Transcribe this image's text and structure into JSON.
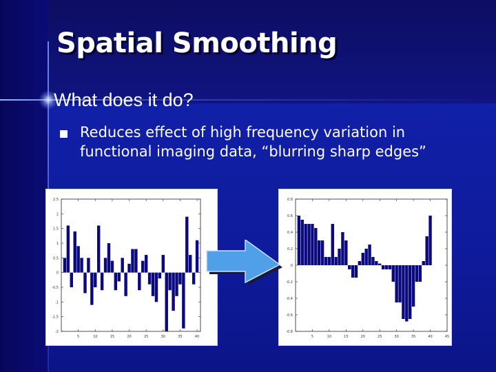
{
  "slide": {
    "title": "Spatial Smoothing",
    "subtitle": "What does it do?",
    "bullet": "Reduces effect of high frequency variation in functional imaging data, “blurring sharp edges”"
  },
  "colors": {
    "bar_fill": "#0a0a7e",
    "arrow_fill": "#4fa0e8",
    "text": "#ffffff"
  },
  "icons": {
    "arrow": "right-arrow-icon",
    "bullet": "square-bullet-icon"
  },
  "chart_data": [
    {
      "type": "bar",
      "x": [
        1,
        2,
        3,
        4,
        5,
        6,
        7,
        8,
        9,
        10,
        11,
        12,
        13,
        14,
        15,
        16,
        17,
        18,
        19,
        20,
        21,
        22,
        23,
        24,
        25,
        26,
        27,
        28,
        29,
        30,
        31,
        32,
        33,
        34,
        35,
        36,
        37,
        38,
        39,
        40
      ],
      "values": [
        0.5,
        1.6,
        -0.5,
        1.4,
        0.9,
        0.5,
        -0.7,
        0.5,
        -1.1,
        -0.5,
        1.6,
        -0.6,
        0.5,
        1.0,
        0.4,
        -0.6,
        -0.3,
        0.5,
        -0.8,
        0.3,
        0.8,
        0.8,
        -0.6,
        0.4,
        0.6,
        -0.4,
        -0.8,
        -1.0,
        -0.2,
        0.6,
        -2.0,
        -0.6,
        -1.3,
        -0.8,
        -0.4,
        -1.9,
        1.9,
        0.6,
        -0.4,
        1.1
      ],
      "xlim": [
        0,
        41
      ],
      "ylim": [
        -2.0,
        2.5
      ],
      "yticks": [
        -2,
        -1.5,
        -1,
        -0.5,
        0,
        0.5,
        1,
        1.5,
        2,
        2.5
      ],
      "xticks": [
        5,
        10,
        15,
        20,
        25,
        30,
        35,
        40
      ]
    },
    {
      "type": "bar",
      "x": [
        1,
        2,
        3,
        4,
        5,
        6,
        7,
        8,
        9,
        10,
        11,
        12,
        13,
        14,
        15,
        16,
        17,
        18,
        19,
        20,
        21,
        22,
        23,
        24,
        25,
        26,
        27,
        28,
        29,
        30,
        31,
        32,
        33,
        34,
        35,
        36,
        37,
        38,
        39,
        40
      ],
      "values": [
        0.6,
        0.55,
        0.5,
        0.5,
        0.5,
        0.45,
        0.3,
        0.3,
        0.1,
        0.1,
        0.5,
        0.1,
        0.2,
        0.4,
        0.3,
        -0.05,
        -0.15,
        -0.15,
        0.05,
        0.15,
        0.2,
        0.25,
        0.1,
        0.05,
        0.02,
        -0.05,
        -0.05,
        -0.05,
        -0.2,
        -0.45,
        -0.45,
        -0.65,
        -0.68,
        -0.65,
        -0.5,
        -0.2,
        -0.2,
        0.05,
        0.35,
        0.6
      ],
      "xlim": [
        0,
        45
      ],
      "ylim": [
        -0.8,
        0.8
      ],
      "yticks": [
        -0.8,
        -0.6,
        -0.4,
        -0.2,
        0,
        0.2,
        0.4,
        0.6,
        0.8
      ],
      "ytick_labels": [
        "-0.8",
        "-0.6",
        "-0.4",
        "-0.2",
        "0",
        "0.2",
        "0.4",
        "0.6",
        "0.8"
      ],
      "xticks": [
        5,
        10,
        15,
        20,
        25,
        30,
        35,
        40,
        45
      ]
    }
  ]
}
